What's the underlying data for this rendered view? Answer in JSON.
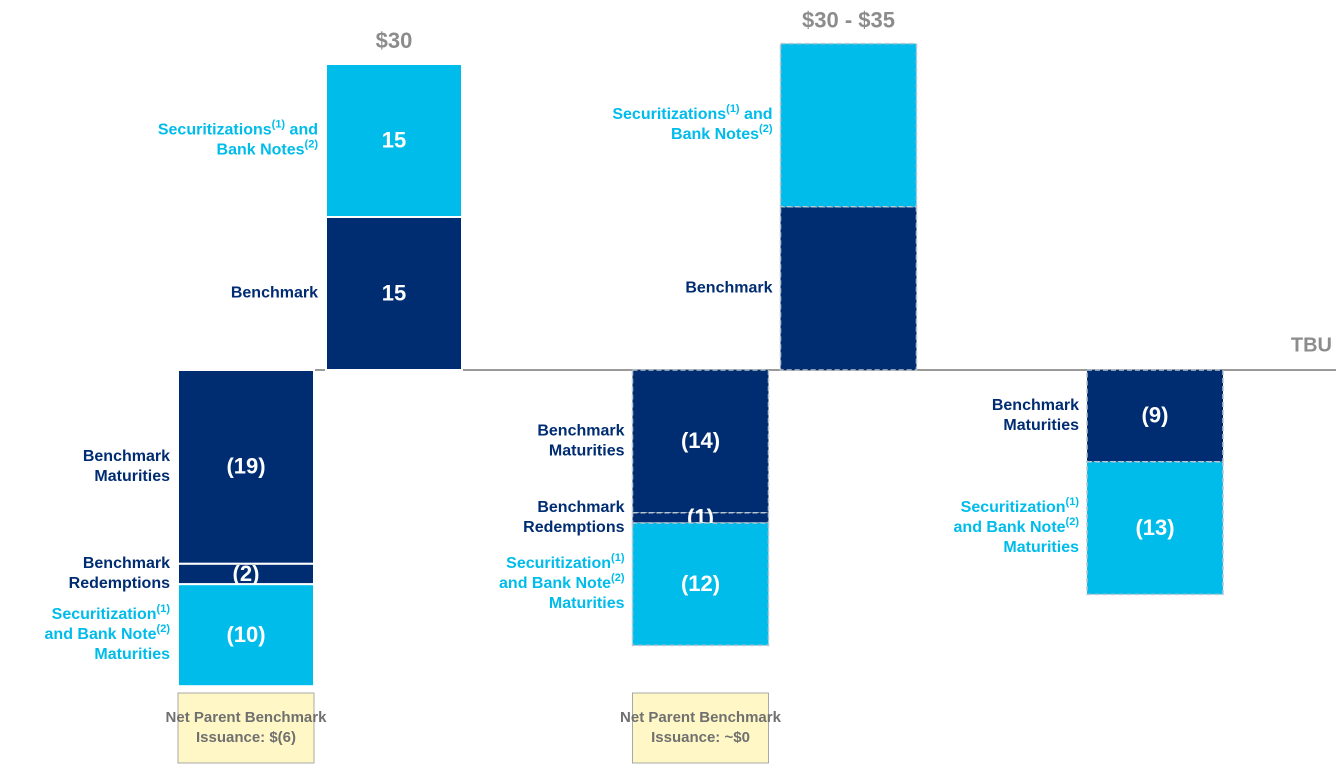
{
  "chart_data": {
    "type": "stacked_bar",
    "baseline_label": "TBU",
    "columns": [
      {
        "dashed": false,
        "total_label": "$30",
        "issuance": [
          {
            "label": [
              "Benchmark"
            ],
            "value": 15,
            "value_label": "15",
            "color": "#002D72"
          },
          {
            "label": [
              "Securitizations(1) and",
              "Bank Notes(2)"
            ],
            "value": 15,
            "value_label": "15",
            "color": "#00BCEB"
          }
        ],
        "maturities": [
          {
            "label": [
              "Benchmark",
              "Maturities"
            ],
            "value": -19,
            "value_label": "(19)",
            "color": "#002D72"
          },
          {
            "label": [
              "Benchmark",
              "Redemptions"
            ],
            "value": -2,
            "value_label": "(2)",
            "color": "#002D72"
          },
          {
            "label": [
              "Securitization(1)",
              "and Bank Note(2)",
              "Maturities"
            ],
            "value": -10,
            "value_label": "(10)",
            "color": "#00BCEB"
          }
        ],
        "note": [
          "Net Parent Benchmark",
          "Issuance: $(6)"
        ]
      },
      {
        "dashed": true,
        "total_label": "$30 - $35",
        "issuance": [
          {
            "label": [
              "Benchmark"
            ],
            "value": 16,
            "color": "#002D72"
          },
          {
            "label": [
              "Securitizations(1) and",
              "Bank Notes(2)"
            ],
            "value": 16,
            "color": "#00BCEB"
          }
        ],
        "maturities": [
          {
            "label": [
              "Benchmark",
              "Maturities"
            ],
            "value": -14,
            "value_label": "(14)",
            "color": "#002D72"
          },
          {
            "label": [
              "Benchmark",
              "Redemptions"
            ],
            "value": -1,
            "value_label": "(1)",
            "color": "#002D72"
          },
          {
            "label": [
              "Securitization(1)",
              "and Bank Note(2)",
              "Maturities"
            ],
            "value": -12,
            "value_label": "(12)",
            "color": "#00BCEB"
          }
        ],
        "note": [
          "Net Parent Benchmark",
          "Issuance: ~$0"
        ]
      },
      {
        "dashed": true,
        "maturities": [
          {
            "label": [
              "Benchmark",
              "Maturities"
            ],
            "value": -9,
            "value_label": "(9)",
            "color": "#002D72"
          },
          {
            "label": [
              "Securitization(1)",
              "and Bank Note(2)",
              "Maturities"
            ],
            "value": -13,
            "value_label": "(13)",
            "color": "#00BCEB"
          }
        ]
      }
    ]
  }
}
